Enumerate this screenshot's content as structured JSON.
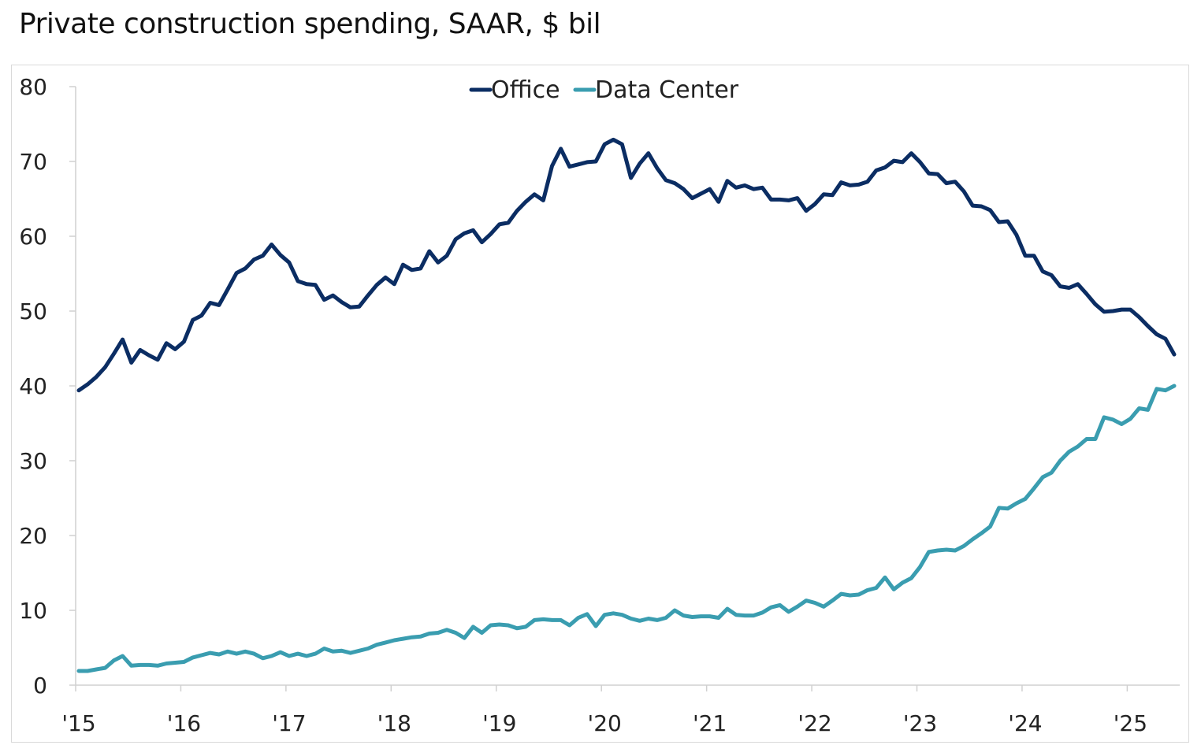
{
  "title": "Private construction spending, SAAR, $ bil",
  "chart_data": {
    "type": "line",
    "title": "Private construction spending, SAAR, $ bil",
    "x_start": "2015-01",
    "x_frequency": "monthly",
    "x_tick_labels": [
      "'15",
      "'16",
      "'17",
      "'18",
      "'19",
      "'20",
      "'21",
      "'22",
      "'23",
      "'24",
      "'25"
    ],
    "y_tick_labels": [
      "0",
      "10",
      "20",
      "30",
      "40",
      "50",
      "60",
      "70",
      "80"
    ],
    "ylim": [
      0,
      80
    ],
    "grid": false,
    "legend_position": "top-center",
    "series": [
      {
        "name": "Office",
        "color": "#0b2d63",
        "values": [
          39.4,
          40.2,
          41.2,
          42.5,
          44.3,
          46.2,
          43.1,
          44.8,
          44.1,
          43.5,
          45.7,
          44.9,
          45.9,
          48.8,
          49.4,
          51.1,
          50.8,
          52.9,
          55.1,
          55.7,
          56.9,
          57.4,
          58.9,
          57.5,
          56.5,
          54.0,
          53.6,
          53.5,
          51.5,
          52.1,
          51.2,
          50.5,
          50.6,
          52.1,
          53.5,
          54.5,
          53.6,
          56.2,
          55.5,
          55.7,
          58.0,
          56.5,
          57.4,
          59.6,
          60.4,
          60.8,
          59.2,
          60.3,
          61.6,
          61.8,
          63.4,
          64.6,
          65.6,
          64.8,
          69.4,
          71.7,
          69.3,
          69.6,
          69.9,
          70.0,
          72.3,
          72.9,
          72.3,
          67.8,
          69.7,
          71.1,
          69.1,
          67.5,
          67.1,
          66.3,
          65.1,
          65.7,
          66.3,
          64.6,
          67.4,
          66.5,
          66.8,
          66.3,
          66.5,
          64.9,
          64.9,
          64.8,
          65.1,
          63.4,
          64.3,
          65.6,
          65.5,
          67.2,
          66.8,
          66.9,
          67.3,
          68.8,
          69.2,
          70.1,
          69.9,
          71.1,
          69.9,
          68.4,
          68.3,
          67.1,
          67.3,
          66.0,
          64.1,
          64.0,
          63.5,
          61.9,
          62.0,
          60.2,
          57.4,
          57.4,
          55.3,
          54.8,
          53.3,
          53.1,
          53.6,
          52.3,
          50.9,
          49.9,
          50.0,
          50.2,
          50.2,
          49.2,
          48.0,
          46.9,
          46.3,
          44.2
        ]
      },
      {
        "name": "Data Center",
        "color": "#3a9db0",
        "values": [
          1.9,
          1.9,
          2.1,
          2.3,
          3.3,
          3.9,
          2.6,
          2.7,
          2.7,
          2.6,
          2.9,
          3.0,
          3.1,
          3.7,
          4.0,
          4.3,
          4.1,
          4.5,
          4.2,
          4.5,
          4.2,
          3.6,
          3.9,
          4.4,
          3.9,
          4.2,
          3.9,
          4.2,
          4.9,
          4.5,
          4.6,
          4.3,
          4.6,
          4.9,
          5.4,
          5.7,
          6.0,
          6.2,
          6.4,
          6.5,
          6.9,
          7.0,
          7.4,
          7.0,
          6.3,
          7.8,
          7.0,
          8.0,
          8.1,
          8.0,
          7.6,
          7.8,
          8.7,
          8.8,
          8.7,
          8.7,
          8.0,
          9.0,
          9.5,
          7.9,
          9.4,
          9.6,
          9.4,
          8.9,
          8.6,
          8.9,
          8.7,
          9.0,
          10.0,
          9.3,
          9.1,
          9.2,
          9.2,
          9.0,
          10.2,
          9.4,
          9.3,
          9.3,
          9.7,
          10.4,
          10.7,
          9.8,
          10.5,
          11.3,
          11.0,
          10.5,
          11.3,
          12.2,
          12.0,
          12.1,
          12.7,
          13.0,
          14.4,
          12.8,
          13.7,
          14.3,
          15.8,
          17.8,
          18.0,
          18.1,
          18.0,
          18.6,
          19.5,
          20.3,
          21.2,
          23.7,
          23.6,
          24.3,
          24.9,
          26.3,
          27.8,
          28.4,
          30.0,
          31.2,
          31.9,
          32.9,
          32.9,
          35.8,
          35.5,
          34.9,
          35.6,
          37.0,
          36.8,
          39.6,
          39.4,
          40.0
        ]
      }
    ]
  }
}
